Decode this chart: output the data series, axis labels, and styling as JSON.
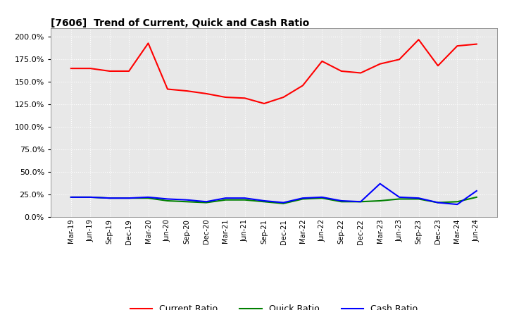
{
  "title": "[7606]  Trend of Current, Quick and Cash Ratio",
  "labels": [
    "Mar-19",
    "Jun-19",
    "Sep-19",
    "Dec-19",
    "Mar-20",
    "Jun-20",
    "Sep-20",
    "Dec-20",
    "Mar-21",
    "Jun-21",
    "Sep-21",
    "Dec-21",
    "Mar-22",
    "Jun-22",
    "Sep-22",
    "Dec-22",
    "Mar-23",
    "Jun-23",
    "Sep-23",
    "Dec-23",
    "Mar-24",
    "Jun-24"
  ],
  "current_ratio": [
    165,
    165,
    162,
    162,
    193,
    142,
    140,
    137,
    133,
    132,
    126,
    133,
    146,
    173,
    162,
    160,
    170,
    175,
    197,
    168,
    190,
    192
  ],
  "quick_ratio": [
    22,
    22,
    21,
    21,
    21,
    18,
    17,
    16,
    19,
    19,
    17,
    15,
    20,
    21,
    17,
    17,
    18,
    20,
    20,
    16,
    17,
    22
  ],
  "cash_ratio": [
    22,
    22,
    21,
    21,
    22,
    20,
    19,
    17,
    21,
    21,
    18,
    16,
    21,
    22,
    18,
    17,
    37,
    22,
    21,
    16,
    14,
    29
  ],
  "current_color": "#FF0000",
  "quick_color": "#008000",
  "cash_color": "#0000FF",
  "ylim": [
    0,
    210
  ],
  "yticks": [
    0,
    25,
    50,
    75,
    100,
    125,
    150,
    175,
    200
  ],
  "background_color": "#FFFFFF",
  "plot_bg_color": "#E8E8E8",
  "grid_color": "#FFFFFF"
}
